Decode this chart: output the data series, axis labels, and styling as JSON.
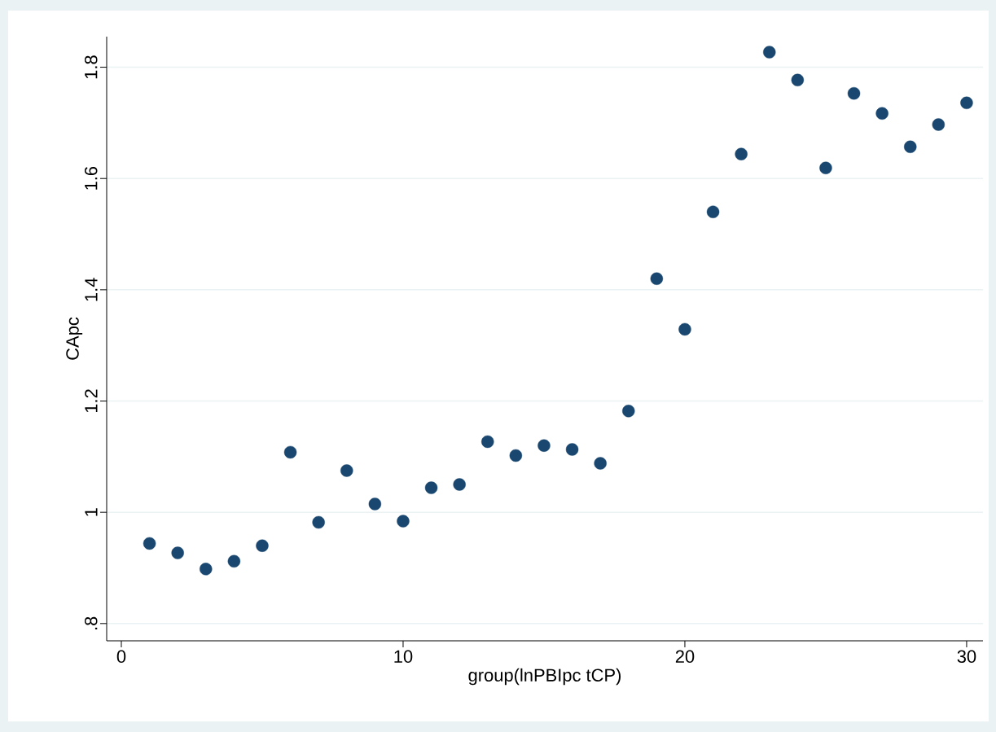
{
  "chart_data": {
    "type": "scatter",
    "xlabel": "group(lnPBIpc tCP)",
    "ylabel": "CApc",
    "x": [
      1,
      2,
      3,
      4,
      5,
      6,
      7,
      8,
      9,
      10,
      11,
      12,
      13,
      14,
      15,
      16,
      17,
      18,
      19,
      20,
      21,
      22,
      23,
      24,
      25,
      26,
      27,
      28,
      29,
      30
    ],
    "values": [
      0.944,
      0.927,
      0.898,
      0.912,
      0.94,
      1.108,
      0.982,
      1.075,
      1.015,
      0.984,
      1.044,
      1.05,
      1.127,
      1.102,
      1.12,
      1.113,
      1.088,
      1.182,
      1.42,
      1.329,
      1.54,
      1.644,
      1.827,
      1.777,
      1.619,
      1.753,
      1.717,
      1.657,
      1.697,
      1.736
    ],
    "color": "#1a476f",
    "marker": "circle",
    "xlim": [
      -0.52,
      30.58
    ],
    "ylim": [
      0.769,
      1.855
    ],
    "xticks": [
      0,
      10,
      20,
      30
    ],
    "yticks": [
      {
        "value": 0.8,
        "label": ".8"
      },
      {
        "value": 1,
        "label": "1"
      },
      {
        "value": 1.2,
        "label": "1.2"
      },
      {
        "value": 1.4,
        "label": "1.4"
      },
      {
        "value": 1.6,
        "label": "1.6"
      },
      {
        "value": 1.8,
        "label": "1.8"
      }
    ],
    "grid": "y"
  }
}
